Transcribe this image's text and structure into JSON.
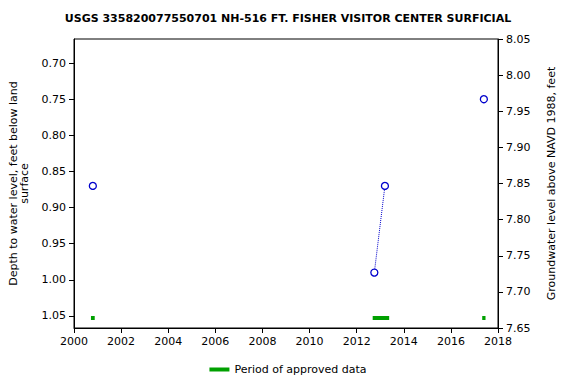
{
  "chart_data": {
    "type": "line",
    "title": "USGS 335820077550701 NH-516 FT. FISHER VISITOR CENTER SURFICIAL",
    "x_label": null,
    "y_label": "Depth to water level, feet below land\nsurface",
    "y2_label": "Groundwater level above NAVD 1988, feet",
    "xlim": [
      2000,
      2018
    ],
    "xticks": [
      2000,
      2002,
      2004,
      2006,
      2008,
      2010,
      2012,
      2014,
      2016,
      2018
    ],
    "ylim": [
      1.0667,
      0.6667
    ],
    "yticks": [
      {
        "value": 0.7,
        "label": "0.70"
      },
      0.75,
      {
        "value": 0.8,
        "label": "0.80"
      },
      0.85,
      {
        "value": 0.9,
        "label": "0.90"
      },
      0.95,
      {
        "value": 1.0,
        "label": "1.00"
      },
      1.05
    ],
    "y2lim": [
      7.65,
      8.05
    ],
    "y2ticks": [
      7.65,
      {
        "value": 7.7,
        "label": "7.70"
      },
      7.75,
      {
        "value": 7.8,
        "label": "7.80"
      },
      7.85,
      {
        "value": 7.9,
        "label": "7.90"
      },
      7.95,
      {
        "value": 8.0,
        "label": "8.00"
      },
      8.05
    ],
    "grid": false,
    "legend": "bottom",
    "series": [
      {
        "color": "#0000cc",
        "marker": "circle_open",
        "line_style": "dotted",
        "x": [
          2000.8,
          2000.8,
          2012.75,
          2013.2,
          2013.2,
          2017.4
        ],
        "values": [
          0.87,
          null,
          0.99,
          0.87,
          null,
          0.75
        ]
      }
    ],
    "approved_periods": {
      "name": "Period of approved data",
      "color": "#00a000",
      "ranges": [
        [
          2000.72,
          2000.88
        ],
        [
          2012.68,
          2013.38
        ],
        [
          2017.33,
          2017.47
        ]
      ]
    }
  }
}
